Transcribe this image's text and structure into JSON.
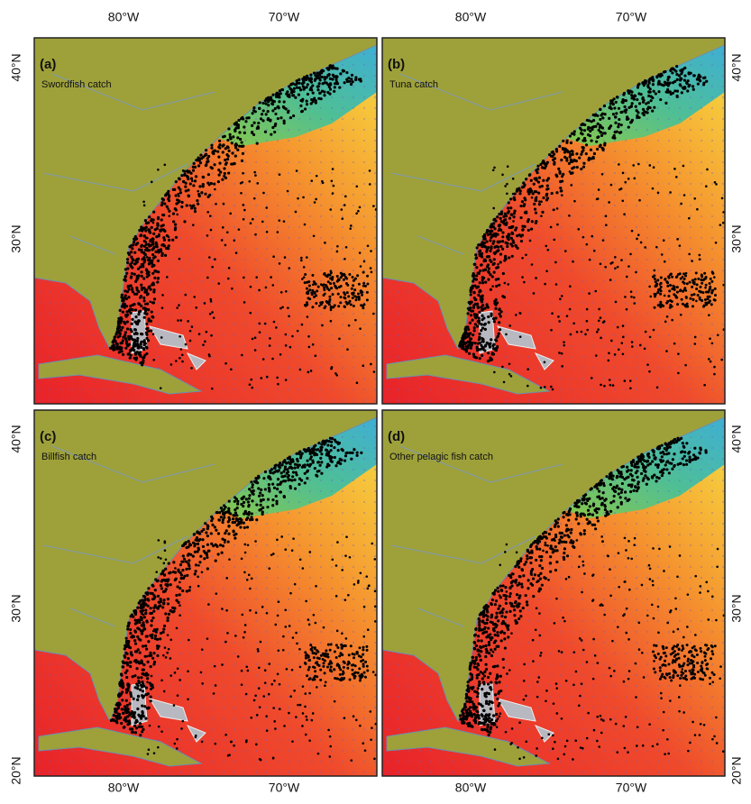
{
  "longitude_labels": [
    "80°W",
    "70°W"
  ],
  "latitude_labels": [
    "40°N",
    "30°N",
    "20°N"
  ],
  "panels": [
    {
      "label": "(a)",
      "title": "Swordfish catch"
    },
    {
      "label": "(b)",
      "title": "Tuna catch"
    },
    {
      "label": "(c)",
      "title": "Billfish catch"
    },
    {
      "label": "(d)",
      "title": "Other pelagic fish catch"
    }
  ]
}
